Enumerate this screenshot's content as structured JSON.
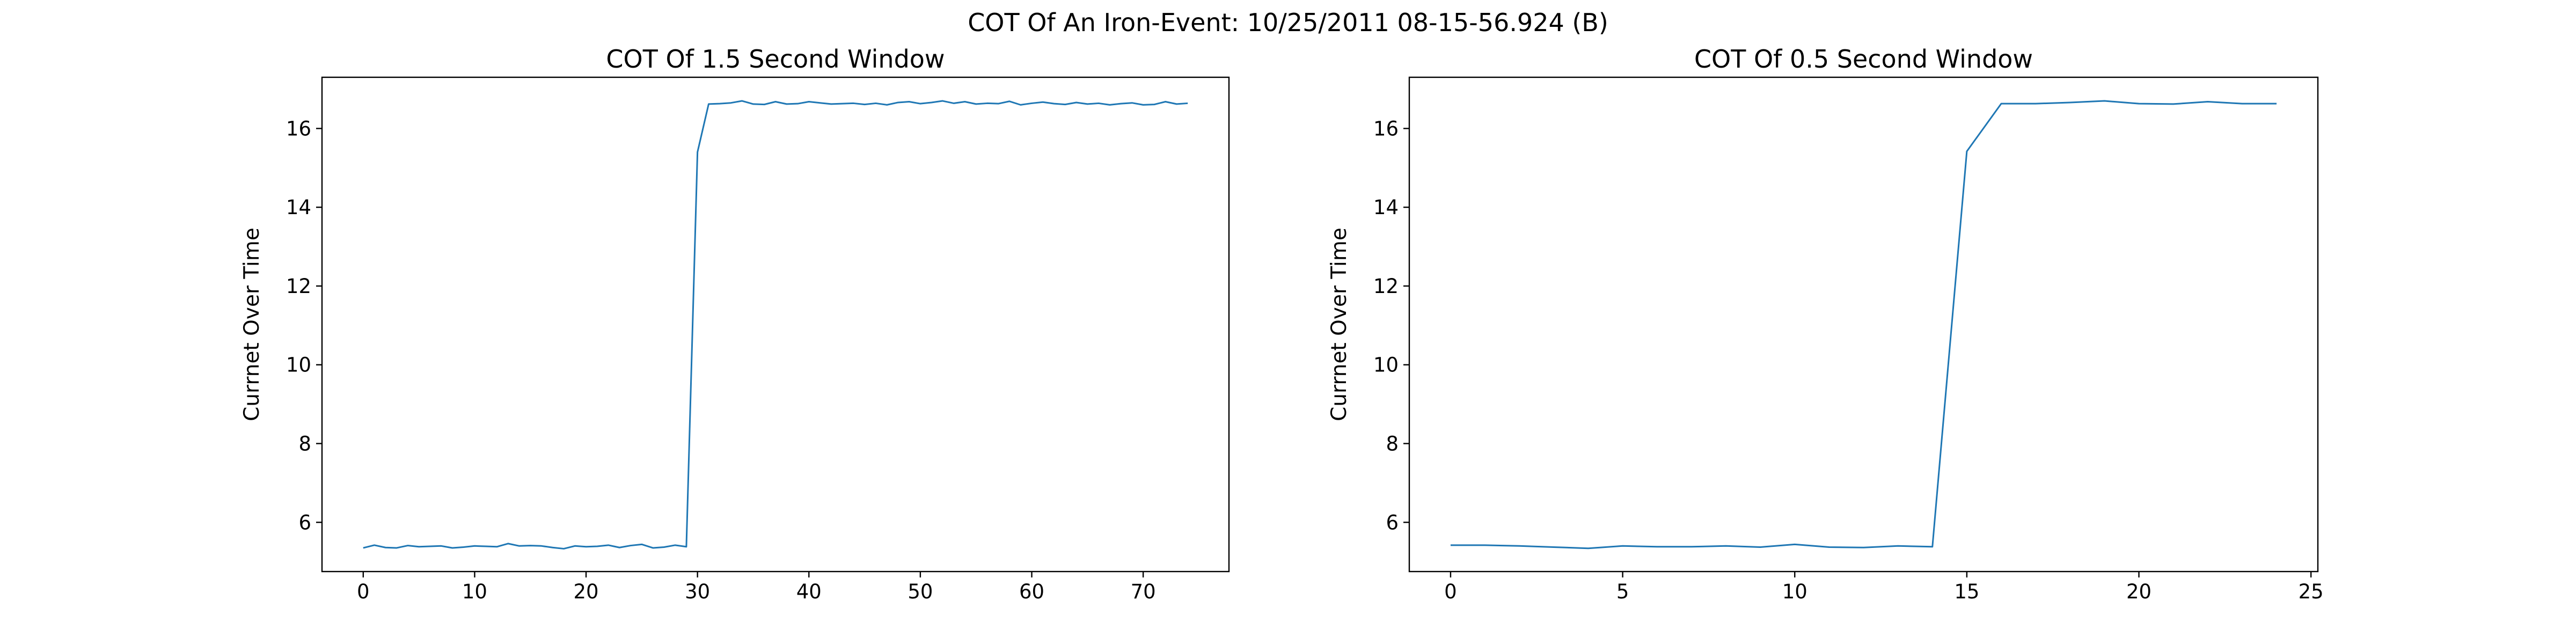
{
  "title": "COT Of An Iron-Event: 10/25/2011 08-15-56.924 (B)",
  "chart_data": [
    {
      "type": "line",
      "title": "COT Of 1.5 Second Window",
      "ylabel": "Currnet Over Time",
      "x": [
        0,
        1,
        2,
        3,
        4,
        5,
        6,
        7,
        8,
        9,
        10,
        11,
        12,
        13,
        14,
        15,
        16,
        17,
        18,
        19,
        20,
        21,
        22,
        23,
        24,
        25,
        26,
        27,
        28,
        29,
        30,
        31,
        32,
        33,
        34,
        35,
        36,
        37,
        38,
        39,
        40,
        41,
        42,
        43,
        44,
        45,
        46,
        47,
        48,
        49,
        50,
        51,
        52,
        53,
        54,
        55,
        56,
        57,
        58,
        59,
        60,
        61,
        62,
        63,
        64,
        65,
        66,
        67,
        68,
        69,
        70,
        71,
        72,
        73,
        74
      ],
      "series": [
        {
          "color": "#1f77b4",
          "values": [
            5.35,
            5.42,
            5.36,
            5.35,
            5.41,
            5.38,
            5.39,
            5.4,
            5.35,
            5.37,
            5.4,
            5.39,
            5.38,
            5.46,
            5.4,
            5.41,
            5.4,
            5.36,
            5.33,
            5.4,
            5.38,
            5.39,
            5.42,
            5.36,
            5.41,
            5.44,
            5.35,
            5.37,
            5.42,
            5.38,
            15.4,
            16.62,
            16.63,
            16.65,
            16.7,
            16.62,
            16.61,
            16.68,
            16.62,
            16.63,
            16.68,
            16.65,
            16.62,
            16.63,
            16.64,
            16.61,
            16.64,
            16.6,
            16.66,
            16.68,
            16.63,
            16.66,
            16.7,
            16.64,
            16.68,
            16.62,
            16.64,
            16.63,
            16.69,
            16.6,
            16.64,
            16.67,
            16.63,
            16.61,
            16.66,
            16.62,
            16.64,
            16.6,
            16.63,
            16.65,
            16.6,
            16.61,
            16.68,
            16.62,
            16.64
          ]
        }
      ],
      "xlim": [
        -3.7,
        77.7
      ],
      "xticks": [
        0,
        10,
        20,
        30,
        40,
        50,
        60,
        70
      ],
      "ylim": [
        4.75,
        17.3
      ],
      "yticks": [
        6,
        8,
        10,
        12,
        14,
        16
      ]
    },
    {
      "type": "line",
      "title": "COT Of 0.5 Second Window",
      "ylabel": "Currnet Over Time",
      "x": [
        0,
        1,
        2,
        3,
        4,
        5,
        6,
        7,
        8,
        9,
        10,
        11,
        12,
        13,
        14,
        15,
        16,
        17,
        18,
        19,
        20,
        21,
        22,
        23,
        24
      ],
      "series": [
        {
          "color": "#1f77b4",
          "values": [
            5.42,
            5.42,
            5.4,
            5.37,
            5.34,
            5.4,
            5.38,
            5.38,
            5.4,
            5.37,
            5.44,
            5.37,
            5.36,
            5.4,
            5.38,
            15.42,
            16.63,
            16.63,
            16.66,
            16.7,
            16.63,
            16.62,
            16.68,
            16.63,
            16.63
          ]
        }
      ],
      "xlim": [
        -1.2,
        25.2
      ],
      "xticks": [
        0,
        5,
        10,
        15,
        20,
        25
      ],
      "ylim": [
        4.75,
        17.3
      ],
      "yticks": [
        6,
        8,
        10,
        12,
        14,
        16
      ]
    }
  ]
}
